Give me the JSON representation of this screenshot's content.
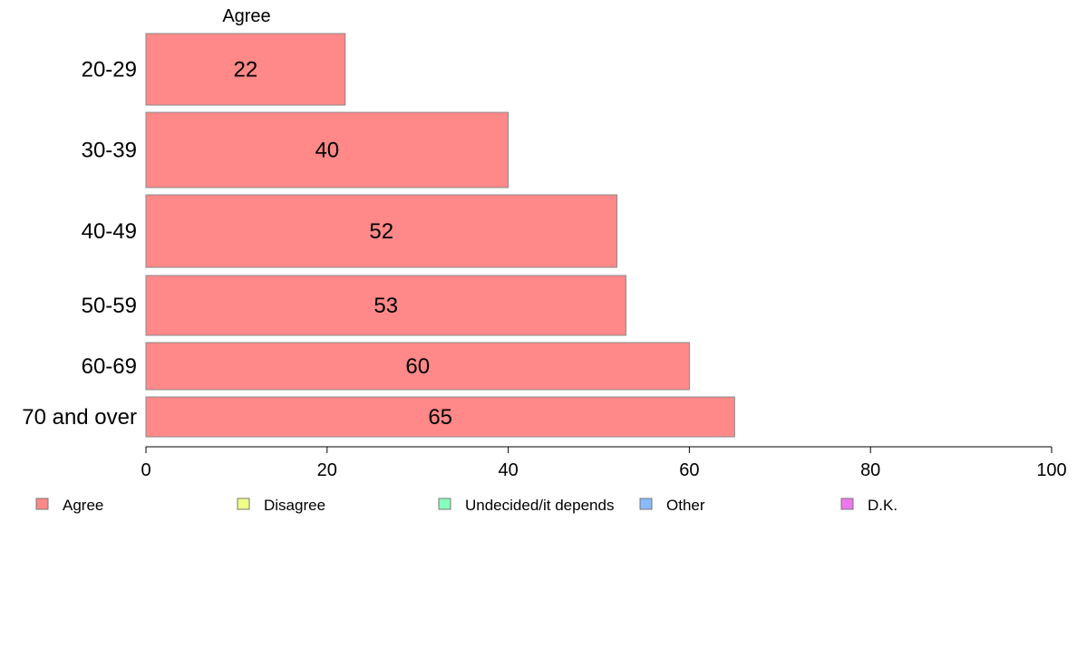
{
  "chart_data": {
    "type": "bar",
    "orientation": "horizontal",
    "stacked": true,
    "categories": [
      "20-29",
      "30-39",
      "40-49",
      "50-59",
      "60-69",
      "70 and over"
    ],
    "series": [
      {
        "name": "Agree",
        "values": [
          22,
          40,
          52,
          53,
          60,
          65
        ],
        "color": "#ff8888"
      }
    ],
    "series_title": "Agree",
    "xlim": [
      0,
      100
    ],
    "xticks": [
      "0",
      "20",
      "40",
      "60",
      "80",
      "100"
    ],
    "grid": false,
    "legend_position": "bottom",
    "legend": [
      {
        "label": "Agree",
        "color": "#ff8888"
      },
      {
        "label": "Disagree",
        "color": "#f0ff88"
      },
      {
        "label": "Undecided/it depends",
        "color": "#88ffbb"
      },
      {
        "label": "Other",
        "color": "#88bbff"
      },
      {
        "label": "D.K.",
        "color": "#ee77ee"
      }
    ]
  }
}
